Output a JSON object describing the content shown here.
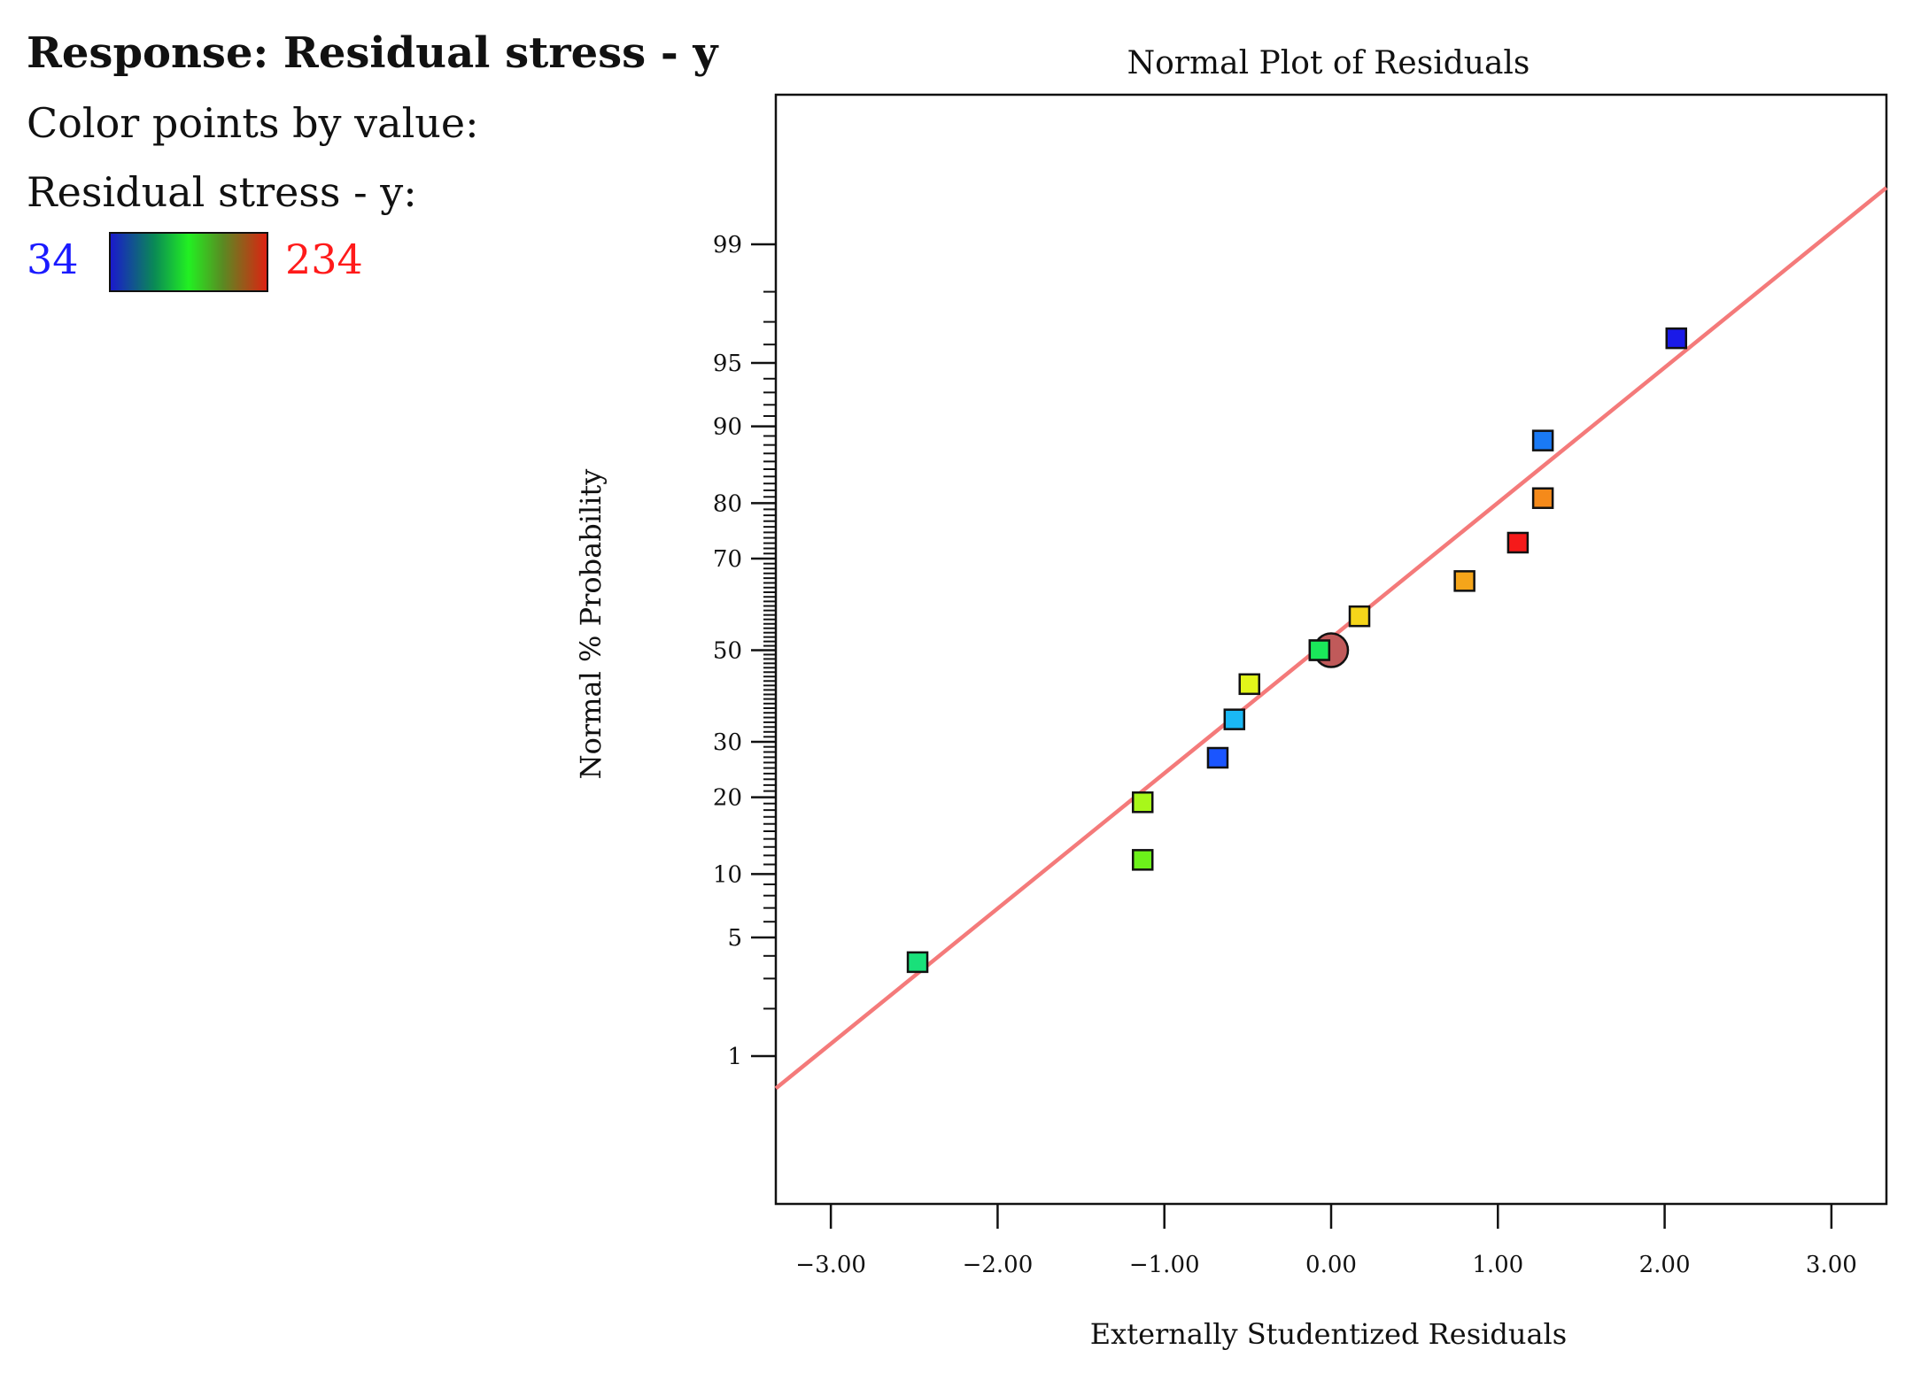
{
  "legend": {
    "response_label": "Response: Residual stress - y",
    "color_points_label": "Color points by value:",
    "variable_label": "Residual stress - y:",
    "min_value": "34",
    "max_value": "234",
    "min_color": "#1a1aff",
    "max_color": "#ff1a1a"
  },
  "chart_data": {
    "type": "scatter",
    "title": "Normal Plot of Residuals",
    "xlabel": "Externally Studentized Residuals",
    "ylabel": "Normal % Probability",
    "xlim": [
      -3.33,
      3.33
    ],
    "x_ticks": [
      -3,
      -2,
      -1,
      0,
      1,
      2,
      3
    ],
    "x_tick_labels": [
      "-3.00",
      "-2.00",
      "-1.00",
      "0.00",
      "1.00",
      "2.00",
      "3.00"
    ],
    "y_scale": "normal-probability",
    "y_ticks": [
      1,
      5,
      10,
      20,
      30,
      50,
      70,
      80,
      90,
      95,
      99
    ],
    "y_tick_labels": [
      "1",
      "5",
      "10",
      "20",
      "30",
      "50",
      "70",
      "80",
      "90",
      "95",
      "99"
    ],
    "reference_line": {
      "color": "#f47a7a",
      "points": [
        [
          -3.33,
          0.6
        ],
        [
          3.33,
          99.6
        ]
      ]
    },
    "points": [
      {
        "x": -2.48,
        "y": 3.7,
        "color": "#19e07a"
      },
      {
        "x": -1.13,
        "y": 11.5,
        "color": "#6cf21a"
      },
      {
        "x": -1.13,
        "y": 19.2,
        "color": "#a8f71a"
      },
      {
        "x": -0.68,
        "y": 26.9,
        "color": "#1a55ff"
      },
      {
        "x": -0.58,
        "y": 34.6,
        "color": "#1ab8f5"
      },
      {
        "x": -0.49,
        "y": 42.3,
        "color": "#e2f51a"
      },
      {
        "x": -0.07,
        "y": 50.0,
        "color": "#1ae85a"
      },
      {
        "x": 0.0,
        "y": 50.0,
        "color": "#c05a5a",
        "marker": "circle"
      },
      {
        "x": 0.17,
        "y": 57.7,
        "color": "#f5d51a"
      },
      {
        "x": 0.8,
        "y": 65.4,
        "color": "#f5a51a"
      },
      {
        "x": 1.12,
        "y": 73.1,
        "color": "#f51a1a"
      },
      {
        "x": 1.27,
        "y": 80.8,
        "color": "#f58a1a"
      },
      {
        "x": 1.27,
        "y": 88.5,
        "color": "#1a7af5"
      },
      {
        "x": 2.07,
        "y": 96.3,
        "color": "#1a1ae8"
      }
    ]
  }
}
